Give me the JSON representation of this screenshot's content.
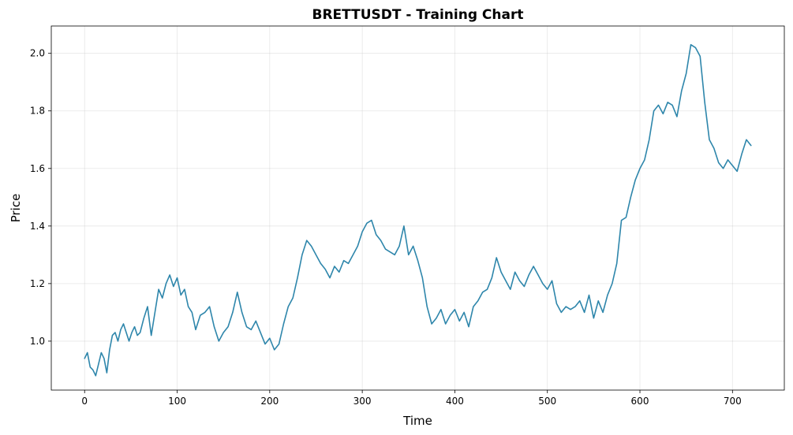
{
  "chart_data": {
    "type": "line",
    "title": "BRETTUSDT - Training Chart",
    "xlabel": "Time",
    "ylabel": "Price",
    "xlim": [
      -36,
      756
    ],
    "ylim": [
      0.83,
      2.095
    ],
    "xticks": [
      0,
      100,
      200,
      300,
      400,
      500,
      600,
      700
    ],
    "yticks": [
      1.0,
      1.2,
      1.4,
      1.6,
      1.8,
      2.0
    ],
    "xtick_labels": [
      "0",
      "100",
      "200",
      "300",
      "400",
      "500",
      "600",
      "700"
    ],
    "ytick_labels": [
      "1.0",
      "1.2",
      "1.4",
      "1.6",
      "1.8",
      "2.0"
    ],
    "grid": true,
    "legend": "none",
    "line_color": "#2e86ab",
    "series": [
      {
        "x": [
          0,
          3,
          6,
          9,
          12,
          15,
          18,
          21,
          24,
          27,
          30,
          33,
          36,
          39,
          42,
          45,
          48,
          51,
          54,
          57,
          60,
          64,
          68,
          72,
          76,
          80,
          84,
          88,
          92,
          96,
          100,
          104,
          108,
          112,
          116,
          120,
          125,
          130,
          135,
          140,
          145,
          150,
          155,
          160,
          165,
          170,
          175,
          180,
          185,
          190,
          195,
          200,
          205,
          210,
          215,
          220,
          225,
          230,
          235,
          240,
          245,
          250,
          255,
          260,
          265,
          270,
          275,
          280,
          285,
          290,
          295,
          300,
          305,
          310,
          315,
          320,
          325,
          330,
          335,
          340,
          345,
          350,
          355,
          360,
          365,
          370,
          375,
          380,
          385,
          390,
          395,
          400,
          405,
          410,
          415,
          420,
          425,
          430,
          435,
          440,
          445,
          450,
          455,
          460,
          465,
          470,
          475,
          480,
          485,
          490,
          495,
          500,
          505,
          510,
          515,
          520,
          525,
          530,
          535,
          540,
          545,
          550,
          555,
          560,
          565,
          570,
          575,
          580,
          585,
          590,
          595,
          600,
          605,
          610,
          615,
          620,
          625,
          630,
          635,
          640,
          645,
          650,
          655,
          660,
          665,
          670,
          675,
          680,
          685,
          690,
          695,
          700,
          705,
          710,
          715,
          720
        ],
        "y": [
          0.94,
          0.96,
          0.91,
          0.9,
          0.88,
          0.92,
          0.96,
          0.94,
          0.89,
          0.97,
          1.02,
          1.03,
          1.0,
          1.04,
          1.06,
          1.03,
          1.0,
          1.03,
          1.05,
          1.02,
          1.03,
          1.08,
          1.12,
          1.02,
          1.1,
          1.18,
          1.15,
          1.2,
          1.23,
          1.19,
          1.22,
          1.16,
          1.18,
          1.12,
          1.1,
          1.04,
          1.09,
          1.1,
          1.12,
          1.05,
          1.0,
          1.03,
          1.05,
          1.1,
          1.17,
          1.1,
          1.05,
          1.04,
          1.07,
          1.03,
          0.99,
          1.01,
          0.97,
          0.99,
          1.06,
          1.12,
          1.15,
          1.22,
          1.3,
          1.35,
          1.33,
          1.3,
          1.27,
          1.25,
          1.22,
          1.26,
          1.24,
          1.28,
          1.27,
          1.3,
          1.33,
          1.38,
          1.41,
          1.42,
          1.37,
          1.35,
          1.32,
          1.31,
          1.3,
          1.33,
          1.4,
          1.3,
          1.33,
          1.28,
          1.22,
          1.12,
          1.06,
          1.08,
          1.11,
          1.06,
          1.09,
          1.11,
          1.07,
          1.1,
          1.05,
          1.12,
          1.14,
          1.17,
          1.18,
          1.22,
          1.29,
          1.24,
          1.21,
          1.18,
          1.24,
          1.21,
          1.19,
          1.23,
          1.26,
          1.23,
          1.2,
          1.18,
          1.21,
          1.13,
          1.1,
          1.12,
          1.11,
          1.12,
          1.14,
          1.1,
          1.16,
          1.08,
          1.14,
          1.1,
          1.16,
          1.2,
          1.27,
          1.42,
          1.43,
          1.5,
          1.56,
          1.6,
          1.63,
          1.7,
          1.8,
          1.82,
          1.79,
          1.83,
          1.82,
          1.78,
          1.87,
          1.93,
          2.03,
          2.02,
          1.99,
          1.83,
          1.7,
          1.67,
          1.62,
          1.6,
          1.63,
          1.61,
          1.59,
          1.65,
          1.7,
          1.68
        ]
      }
    ]
  }
}
